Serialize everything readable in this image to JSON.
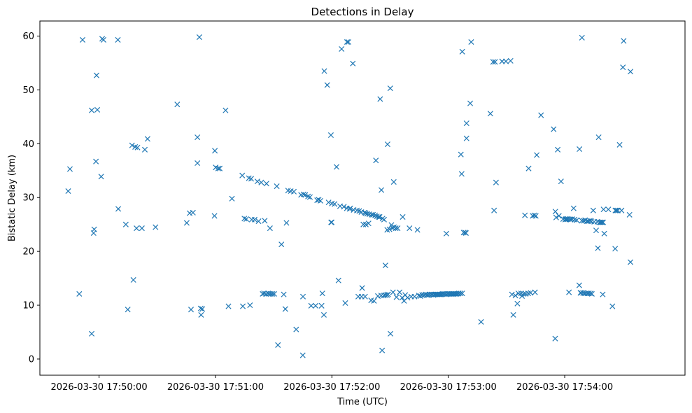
{
  "chart_data": {
    "type": "scatter",
    "title": "Detections in Delay",
    "xlabel": "Time (UTC)",
    "ylabel": "Bistatic Delay (km)",
    "marker": "x",
    "color": "#1f77b4",
    "xlim_seconds": [
      -30.5,
      302.0
    ],
    "x_ref": "2026-03-30 17:50:00",
    "ylim": [
      -3,
      62.8
    ],
    "x_ticks": [
      {
        "value": 0,
        "label": "2026-03-30 17:50:00"
      },
      {
        "value": 60,
        "label": "2026-03-30 17:51:00"
      },
      {
        "value": 120,
        "label": "2026-03-30 17:52:00"
      },
      {
        "value": 180,
        "label": "2026-03-30 17:53:00"
      },
      {
        "value": 240,
        "label": "2026-03-30 17:54:00"
      }
    ],
    "y_ticks": [
      {
        "value": 0,
        "label": "0"
      },
      {
        "value": 10,
        "label": "10"
      },
      {
        "value": 20,
        "label": "20"
      },
      {
        "value": 30,
        "label": "30"
      },
      {
        "value": 40,
        "label": "40"
      },
      {
        "value": 50,
        "label": "50"
      },
      {
        "value": 60,
        "label": "60"
      }
    ],
    "points": [
      [
        -15.9,
        31.2
      ],
      [
        -15.0,
        35.3
      ],
      [
        -10.2,
        12.1
      ],
      [
        -8.5,
        59.3
      ],
      [
        -3.8,
        4.7
      ],
      [
        -3.8,
        46.2
      ],
      [
        -2.8,
        23.4
      ],
      [
        -2.5,
        24.1
      ],
      [
        -1.6,
        36.7
      ],
      [
        -1.3,
        52.7
      ],
      [
        -0.9,
        46.3
      ],
      [
        1.1,
        33.9
      ],
      [
        1.6,
        59.5
      ],
      [
        2.3,
        59.3
      ],
      [
        9.7,
        59.3
      ],
      [
        9.9,
        27.9
      ],
      [
        13.8,
        25.0
      ],
      [
        14.8,
        9.2
      ],
      [
        17.0,
        39.7
      ],
      [
        17.7,
        14.7
      ],
      [
        18.6,
        39.4
      ],
      [
        19.3,
        24.3
      ],
      [
        19.8,
        39.3
      ],
      [
        22.1,
        24.3
      ],
      [
        23.6,
        38.9
      ],
      [
        25.0,
        40.9
      ],
      [
        29.1,
        24.5
      ],
      [
        40.3,
        47.3
      ],
      [
        45.2,
        25.3
      ],
      [
        46.7,
        27.1
      ],
      [
        47.4,
        9.2
      ],
      [
        48.4,
        27.2
      ],
      [
        50.7,
        41.2
      ],
      [
        50.7,
        36.4
      ],
      [
        51.7,
        59.8
      ],
      [
        52.4,
        9.4
      ],
      [
        52.6,
        8.2
      ],
      [
        53.2,
        9.3
      ],
      [
        59.5,
        26.6
      ],
      [
        59.7,
        38.7
      ],
      [
        60.1,
        35.6
      ],
      [
        61.4,
        35.4
      ],
      [
        62.2,
        35.4
      ],
      [
        65.2,
        46.2
      ],
      [
        66.7,
        9.8
      ],
      [
        68.5,
        29.8
      ],
      [
        73.8,
        34.1
      ],
      [
        74.1,
        9.8
      ],
      [
        74.9,
        26.1
      ],
      [
        75.9,
        26.0
      ],
      [
        77.2,
        33.6
      ],
      [
        77.8,
        10.0
      ],
      [
        78.4,
        33.5
      ],
      [
        78.7,
        25.9
      ],
      [
        80.2,
        25.9
      ],
      [
        81.6,
        33.0
      ],
      [
        82.2,
        25.6
      ],
      [
        83.6,
        32.8
      ],
      [
        84.3,
        12.1
      ],
      [
        85.0,
        12.2
      ],
      [
        85.4,
        25.7
      ],
      [
        86.0,
        12.1
      ],
      [
        86.3,
        32.6
      ],
      [
        87.1,
        12.2
      ],
      [
        87.6,
        12.1
      ],
      [
        88.1,
        24.3
      ],
      [
        88.5,
        12.1
      ],
      [
        89.4,
        12.1
      ],
      [
        90.3,
        12.1
      ],
      [
        91.6,
        32.1
      ],
      [
        92.2,
        2.6
      ],
      [
        94.0,
        21.3
      ],
      [
        95.2,
        12.0
      ],
      [
        96.0,
        9.3
      ],
      [
        96.6,
        25.3
      ],
      [
        97.4,
        31.3
      ],
      [
        98.8,
        31.2
      ],
      [
        100.4,
        31.1
      ],
      [
        101.6,
        5.5
      ],
      [
        104.1,
        30.5
      ],
      [
        105.0,
        0.7
      ],
      [
        105.1,
        11.6
      ],
      [
        105.4,
        30.6
      ],
      [
        106.3,
        30.5
      ],
      [
        107.7,
        30.2
      ],
      [
        108.7,
        30.1
      ],
      [
        109.3,
        9.9
      ],
      [
        111.6,
        9.9
      ],
      [
        112.4,
        29.5
      ],
      [
        113.2,
        29.6
      ],
      [
        114.1,
        29.4
      ],
      [
        114.7,
        9.9
      ],
      [
        115.1,
        12.2
      ],
      [
        115.9,
        8.2
      ],
      [
        116.1,
        53.5
      ],
      [
        117.6,
        50.9
      ],
      [
        118.3,
        29.1
      ],
      [
        119.5,
        41.6
      ],
      [
        119.6,
        25.4
      ],
      [
        119.9,
        25.4
      ],
      [
        120.0,
        28.9
      ],
      [
        121.4,
        28.8
      ],
      [
        122.4,
        35.7
      ],
      [
        123.4,
        14.6
      ],
      [
        124.2,
        28.4
      ],
      [
        125.0,
        57.6
      ],
      [
        126.2,
        28.3
      ],
      [
        126.9,
        10.4
      ],
      [
        127.7,
        28.0
      ],
      [
        127.8,
        58.9
      ],
      [
        128.5,
        58.9
      ],
      [
        129.1,
        27.9
      ],
      [
        129.5,
        28.0
      ],
      [
        130.8,
        54.9
      ],
      [
        131.2,
        27.7
      ],
      [
        132.9,
        27.6
      ],
      [
        133.6,
        11.6
      ],
      [
        134.1,
        27.5
      ],
      [
        135.2,
        27.3
      ],
      [
        135.3,
        11.6
      ],
      [
        135.6,
        13.2
      ],
      [
        136.2,
        25.0
      ],
      [
        136.8,
        27.2
      ],
      [
        137.1,
        11.6
      ],
      [
        137.4,
        27.1
      ],
      [
        137.5,
        25.0
      ],
      [
        138.2,
        27.0
      ],
      [
        138.9,
        25.2
      ],
      [
        139.3,
        26.9
      ],
      [
        140.2,
        10.9
      ],
      [
        140.5,
        26.8
      ],
      [
        141.2,
        26.8
      ],
      [
        141.7,
        10.8
      ],
      [
        142.3,
        26.7
      ],
      [
        142.7,
        36.9
      ],
      [
        143.2,
        26.5
      ],
      [
        143.7,
        11.7
      ],
      [
        144.1,
        26.4
      ],
      [
        144.6,
        26.4
      ],
      [
        144.9,
        48.3
      ],
      [
        145.4,
        11.8
      ],
      [
        145.5,
        31.4
      ],
      [
        145.9,
        1.6
      ],
      [
        146.1,
        26.1
      ],
      [
        146.8,
        11.8
      ],
      [
        146.9,
        25.9
      ],
      [
        147.5,
        11.9
      ],
      [
        147.6,
        17.4
      ],
      [
        148.4,
        11.9
      ],
      [
        148.5,
        24.0
      ],
      [
        148.7,
        39.9
      ],
      [
        149.0,
        12.0
      ],
      [
        149.7,
        24.1
      ],
      [
        150.1,
        50.3
      ],
      [
        150.2,
        4.7
      ],
      [
        150.7,
        24.9
      ],
      [
        151.2,
        24.4
      ],
      [
        151.5,
        12.4
      ],
      [
        151.9,
        32.9
      ],
      [
        152.0,
        24.5
      ],
      [
        152.9,
        24.3
      ],
      [
        153.3,
        11.5
      ],
      [
        153.9,
        24.3
      ],
      [
        154.9,
        12.4
      ],
      [
        156.2,
        11.4
      ],
      [
        156.5,
        26.4
      ],
      [
        157.2,
        10.8
      ],
      [
        157.8,
        11.9
      ],
      [
        159.0,
        11.4
      ],
      [
        160.0,
        24.3
      ],
      [
        160.9,
        11.6
      ],
      [
        162.6,
        11.6
      ],
      [
        164.1,
        24.0
      ],
      [
        164.8,
        11.8
      ],
      [
        165.6,
        11.7
      ],
      [
        166.5,
        11.9
      ],
      [
        167.4,
        11.9
      ],
      [
        168.3,
        12.0
      ],
      [
        169.0,
        11.9
      ],
      [
        169.7,
        11.9
      ],
      [
        170.3,
        12.0
      ],
      [
        171.2,
        12.0
      ],
      [
        171.8,
        12.0
      ],
      [
        172.4,
        11.9
      ],
      [
        173.0,
        12.0
      ],
      [
        173.5,
        12.0
      ],
      [
        174.1,
        12.0
      ],
      [
        174.6,
        12.0
      ],
      [
        175.2,
        12.0
      ],
      [
        175.8,
        12.0
      ],
      [
        176.4,
        12.0
      ],
      [
        177.0,
        12.1
      ],
      [
        177.7,
        12.1
      ],
      [
        178.4,
        12.1
      ],
      [
        179.0,
        23.3
      ],
      [
        179.0,
        12.0
      ],
      [
        179.7,
        12.1
      ],
      [
        180.4,
        12.1
      ],
      [
        181.1,
        12.1
      ],
      [
        181.7,
        12.1
      ],
      [
        182.4,
        12.1
      ],
      [
        182.9,
        12.1
      ],
      [
        183.6,
        12.1
      ],
      [
        184.2,
        12.1
      ],
      [
        184.9,
        12.1
      ],
      [
        185.4,
        12.2
      ],
      [
        186.3,
        12.2
      ],
      [
        186.5,
        38.0
      ],
      [
        186.9,
        34.4
      ],
      [
        187.2,
        12.2
      ],
      [
        187.2,
        57.1
      ],
      [
        187.9,
        23.5
      ],
      [
        188.7,
        23.5
      ],
      [
        189.1,
        23.4
      ],
      [
        189.4,
        41.0
      ],
      [
        189.4,
        43.8
      ],
      [
        191.3,
        47.5
      ],
      [
        191.8,
        58.9
      ],
      [
        196.9,
        6.9
      ],
      [
        201.7,
        45.6
      ],
      [
        203.1,
        55.2
      ],
      [
        203.6,
        27.6
      ],
      [
        204.1,
        55.2
      ],
      [
        204.6,
        32.8
      ],
      [
        207.7,
        55.3
      ],
      [
        209.7,
        55.3
      ],
      [
        212.1,
        55.4
      ],
      [
        212.8,
        12.0
      ],
      [
        213.5,
        8.2
      ],
      [
        214.6,
        11.8
      ],
      [
        215.6,
        10.3
      ],
      [
        216.1,
        12.2
      ],
      [
        217.5,
        12.2
      ],
      [
        218.0,
        11.7
      ],
      [
        218.8,
        12.1
      ],
      [
        219.5,
        26.7
      ],
      [
        219.9,
        12.1
      ],
      [
        221.2,
        12.2
      ],
      [
        221.4,
        35.4
      ],
      [
        222.4,
        12.3
      ],
      [
        223.5,
        26.6
      ],
      [
        224.3,
        26.7
      ],
      [
        224.7,
        12.4
      ],
      [
        225.1,
        26.6
      ],
      [
        225.6,
        37.9
      ],
      [
        227.8,
        45.3
      ],
      [
        234.3,
        42.7
      ],
      [
        235.1,
        3.8
      ],
      [
        235.2,
        27.4
      ],
      [
        235.6,
        26.3
      ],
      [
        236.4,
        38.9
      ],
      [
        237.0,
        26.6
      ],
      [
        238.1,
        33.0
      ],
      [
        239.2,
        26.0
      ],
      [
        240.3,
        25.9
      ],
      [
        240.5,
        26.0
      ],
      [
        241.0,
        26.0
      ],
      [
        241.7,
        26.0
      ],
      [
        242.2,
        12.4
      ],
      [
        242.6,
        26.0
      ],
      [
        243.1,
        25.9
      ],
      [
        243.8,
        26.0
      ],
      [
        244.6,
        28.0
      ],
      [
        245.1,
        25.9
      ],
      [
        246.2,
        25.8
      ],
      [
        247.5,
        13.7
      ],
      [
        247.6,
        39.0
      ],
      [
        248.1,
        12.3
      ],
      [
        248.4,
        12.3
      ],
      [
        248.8,
        25.7
      ],
      [
        248.9,
        59.7
      ],
      [
        249.4,
        12.3
      ],
      [
        249.8,
        25.7
      ],
      [
        250.1,
        12.2
      ],
      [
        250.5,
        25.8
      ],
      [
        250.9,
        12.2
      ],
      [
        251.5,
        25.6
      ],
      [
        251.8,
        12.2
      ],
      [
        252.2,
        25.6
      ],
      [
        252.5,
        12.2
      ],
      [
        253.0,
        25.7
      ],
      [
        253.4,
        12.2
      ],
      [
        253.7,
        25.6
      ],
      [
        254.0,
        12.1
      ],
      [
        254.7,
        27.6
      ],
      [
        255.2,
        25.5
      ],
      [
        256.2,
        23.9
      ],
      [
        256.8,
        25.5
      ],
      [
        257.1,
        20.6
      ],
      [
        257.5,
        41.2
      ],
      [
        258.0,
        25.4
      ],
      [
        258.6,
        25.4
      ],
      [
        259.2,
        25.4
      ],
      [
        259.6,
        12.0
      ],
      [
        259.8,
        25.4
      ],
      [
        260.0,
        27.8
      ],
      [
        260.4,
        23.3
      ],
      [
        262.5,
        27.8
      ],
      [
        264.6,
        9.8
      ],
      [
        266.0,
        20.5
      ],
      [
        266.1,
        27.6
      ],
      [
        266.7,
        27.6
      ],
      [
        267.4,
        27.6
      ],
      [
        268.3,
        39.8
      ],
      [
        269.3,
        27.6
      ],
      [
        270.0,
        54.2
      ],
      [
        270.4,
        59.1
      ],
      [
        273.4,
        26.8
      ],
      [
        273.9,
        53.4
      ],
      [
        273.9,
        18.0
      ]
    ]
  }
}
